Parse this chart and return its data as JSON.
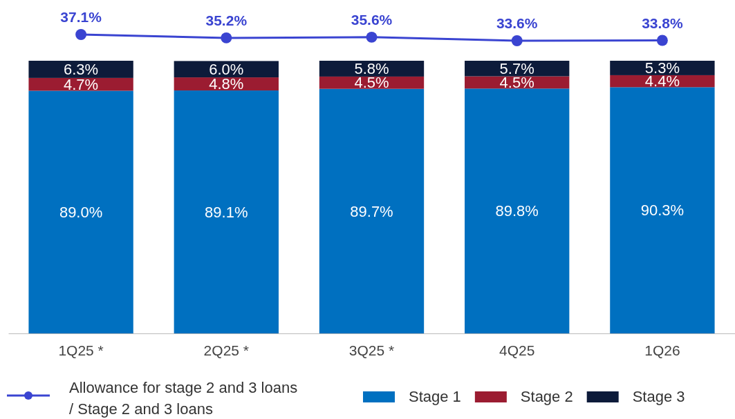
{
  "chart_data": [
    {
      "type": "line",
      "categories": [
        null,
        null,
        null,
        null,
        null
      ],
      "tick_labels": false,
      "marker": "circle",
      "series": [
        {
          "name": "Allowance for stage 2 and 3 loans / Stage 2 and 3 loans",
          "color": "#3a44d1",
          "values": [
            37.1,
            35.2,
            35.6,
            33.6,
            33.8
          ],
          "value_labels": [
            "37.1%",
            "35.2%",
            "35.6%",
            "33.6%",
            "33.8%"
          ]
        }
      ]
    },
    {
      "type": "bar",
      "stacked": true,
      "categories": [
        "1Q25 *",
        "2Q25 *",
        "3Q25 *",
        "4Q25",
        "1Q26"
      ],
      "tick_labels": "x",
      "legend": "bottom",
      "series": [
        {
          "name": "Stage 1",
          "color": "#0070c0",
          "values": [
            89.0,
            89.1,
            89.7,
            89.8,
            90.3
          ],
          "value_labels": [
            "89.0%",
            "89.1%",
            "89.7%",
            "89.8%",
            "90.3%"
          ]
        },
        {
          "name": "Stage 2",
          "color": "#9b1c31",
          "values": [
            4.7,
            4.8,
            4.5,
            4.5,
            4.4
          ],
          "value_labels": [
            "4.7%",
            "4.8%",
            "4.5%",
            "4.5%",
            "4.4%"
          ]
        },
        {
          "name": "Stage 3",
          "color": "#0d1b3a",
          "values": [
            6.3,
            6.0,
            5.8,
            5.7,
            5.3
          ],
          "value_labels": [
            "6.3%",
            "6.0%",
            "5.8%",
            "5.7%",
            "5.3%"
          ]
        }
      ]
    }
  ]
}
